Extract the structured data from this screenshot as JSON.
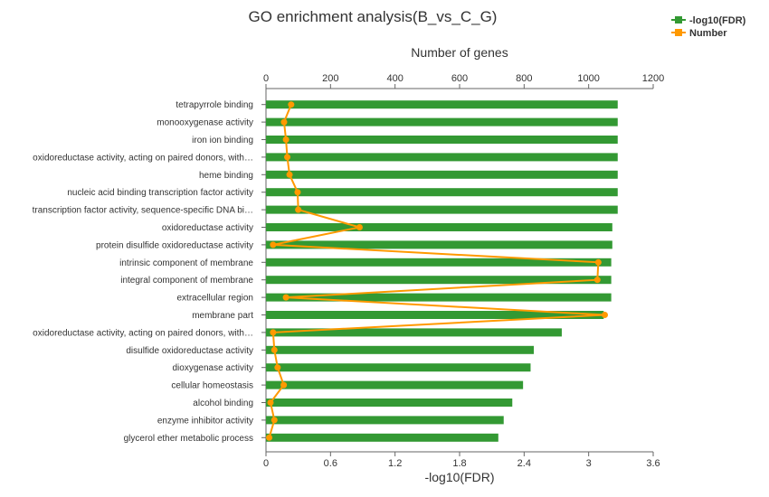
{
  "chart_data": {
    "type": "bar",
    "title": "GO enrichment analysis(B_vs_C_G)",
    "xlabel_bottom": "-log10(FDR)",
    "xlabel_top": "Number of genes",
    "bottom_axis": {
      "min": 0,
      "max": 3.6,
      "ticks": [
        "0",
        "0.6",
        "1.2",
        "1.8",
        "2.4",
        "3",
        "3.6"
      ]
    },
    "top_axis": {
      "min": 0,
      "max": 1200,
      "ticks": [
        "0",
        "200",
        "400",
        "600",
        "800",
        "1000",
        "1200"
      ]
    },
    "categories": [
      "tetrapyrrole binding",
      "monooxygenase activity",
      "iron ion binding",
      "oxidoreductase activity, acting on paired donors, with…",
      "heme binding",
      "nucleic acid binding transcription factor activity",
      "transcription factor activity, sequence-specific DNA bi…",
      "oxidoreductase activity",
      "protein disulfide oxidoreductase activity",
      "intrinsic component of membrane",
      "integral component of membrane",
      "extracellular region",
      "membrane part",
      "oxidoreductase activity, acting on paired donors, with…",
      "disulfide oxidoreductase activity",
      "dioxygenase activity",
      "cellular homeostasis",
      "alcohol binding",
      "enzyme inhibitor activity",
      "glycerol ether metabolic process"
    ],
    "series": [
      {
        "name": "-log10(FDR)",
        "type": "bar",
        "axis": "bottom",
        "color": "#339933",
        "values": [
          3.27,
          3.27,
          3.27,
          3.27,
          3.27,
          3.27,
          3.27,
          3.22,
          3.22,
          3.21,
          3.21,
          3.21,
          3.14,
          2.75,
          2.49,
          2.46,
          2.39,
          2.29,
          2.21,
          2.16
        ]
      },
      {
        "name": "Number",
        "type": "line",
        "axis": "top",
        "color": "#ff9900",
        "values": [
          78,
          56,
          62,
          66,
          73,
          98,
          100,
          290,
          22,
          1030,
          1027,
          62,
          1050,
          22,
          26,
          36,
          55,
          14,
          26,
          10
        ]
      }
    ],
    "legend_position": "top-right"
  }
}
